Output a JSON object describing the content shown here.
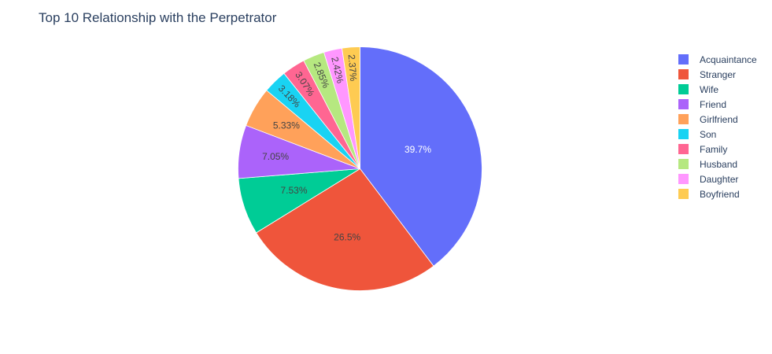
{
  "chart_data": {
    "type": "pie",
    "title": "Top 10 Relationship with the Perpetrator",
    "labels": [
      "Acquaintance",
      "Stranger",
      "Wife",
      "Friend",
      "Girlfriend",
      "Son",
      "Family",
      "Husband",
      "Daughter",
      "Boyfriend"
    ],
    "values": [
      39.7,
      26.5,
      7.53,
      7.05,
      5.33,
      3.18,
      3.07,
      2.85,
      2.42,
      2.37
    ],
    "text_labels": [
      "39.7%",
      "26.5%",
      "7.53%",
      "7.05%",
      "5.33%",
      "3.18%",
      "3.07%",
      "2.85%",
      "2.42%",
      "2.37%"
    ],
    "colors": [
      "#636efa",
      "#EF553B",
      "#00cc96",
      "#ab63fa",
      "#FFA15A",
      "#19d3f3",
      "#FF6692",
      "#B6E880",
      "#FF97FF",
      "#FECB52"
    ],
    "text_colors": [
      "#ffffff",
      "#444444",
      "#444444",
      "#444444",
      "#444444",
      "#444444",
      "#444444",
      "#444444",
      "#444444",
      "#444444"
    ],
    "legend_position": "right",
    "direction": "clockwise",
    "start": "top"
  }
}
